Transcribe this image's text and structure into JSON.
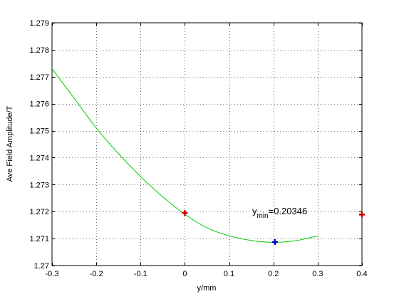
{
  "chart_data": {
    "type": "line",
    "xlabel": "y/mm",
    "ylabel": "Ave Field Amplitude/T",
    "xlim": [
      -0.3,
      0.4
    ],
    "ylim": [
      1.27,
      1.279
    ],
    "x_ticks": [
      -0.3,
      -0.2,
      -0.1,
      0,
      0.1,
      0.2,
      0.3,
      0.4
    ],
    "x_tick_labels": [
      "-0.3",
      "-0.2",
      "-0.1",
      "0",
      "0.1",
      "0.2",
      "0.3",
      "0.4"
    ],
    "y_ticks": [
      1.27,
      1.271,
      1.272,
      1.273,
      1.274,
      1.275,
      1.276,
      1.277,
      1.278,
      1.279
    ],
    "y_tick_labels": [
      "1.27",
      "1.271",
      "1.272",
      "1.273",
      "1.274",
      "1.275",
      "1.276",
      "1.277",
      "1.278",
      "1.279"
    ],
    "grid": true,
    "series": [
      {
        "kind": "curve",
        "color": "#00cc00",
        "x": [
          -0.3,
          -0.25,
          -0.2,
          -0.15,
          -0.1,
          -0.05,
          0,
          0.05,
          0.1,
          0.15,
          0.2,
          0.25,
          0.3
        ],
        "y": [
          1.2773,
          1.2762,
          1.2751,
          1.27415,
          1.2733,
          1.27255,
          1.2719,
          1.2714,
          1.2711,
          1.27093,
          1.27086,
          1.27092,
          1.2711
        ]
      },
      {
        "kind": "markers",
        "color": "#cc0000",
        "marker": "plus",
        "x": [
          0,
          0.4
        ],
        "y": [
          1.27195,
          1.27189
        ]
      },
      {
        "kind": "markers",
        "color": "#0000cc",
        "marker": "plus",
        "x": [
          0.20346
        ],
        "y": [
          1.27087
        ]
      }
    ],
    "annotation": {
      "main": "y",
      "sub": "min",
      "rest": "=0.20346",
      "x": 0.153,
      "y": 1.2716
    }
  }
}
